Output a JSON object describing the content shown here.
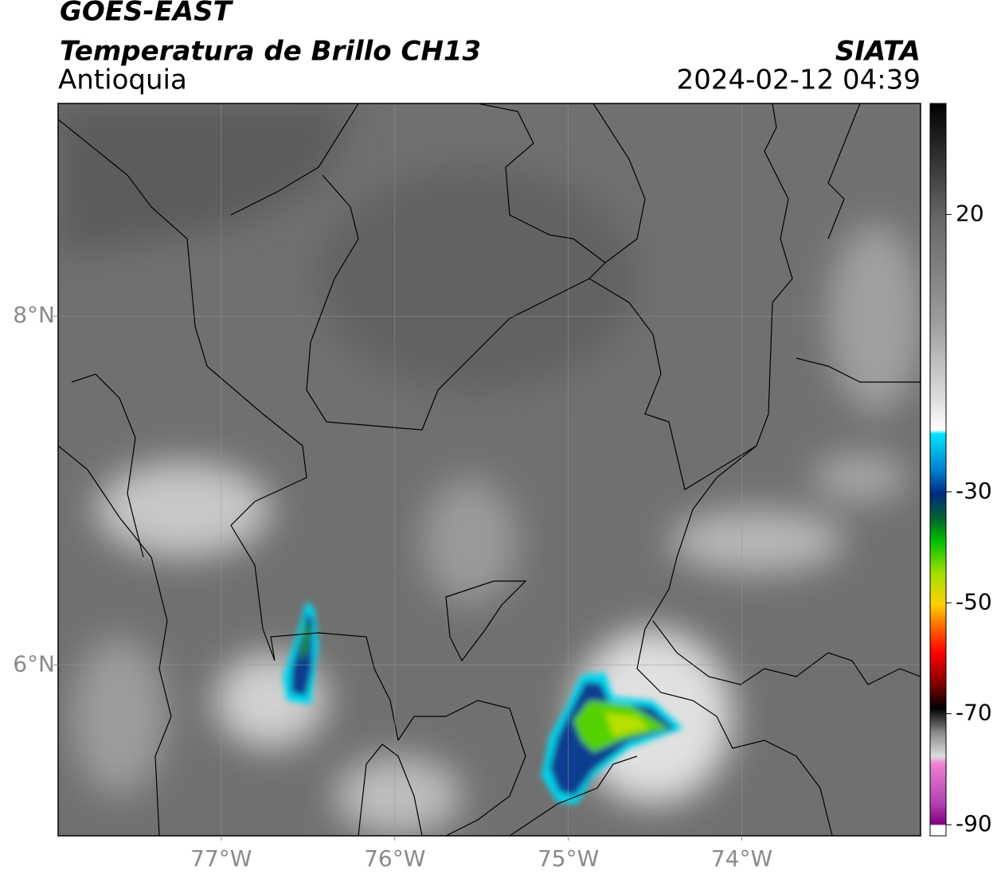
{
  "map": {
    "header": {
      "title": "GOES-EAST",
      "subtitle": "Temperatura de Brillo CH13",
      "region": "Antioquia",
      "source": "SIATA",
      "timestamp": "2024-02-12 04:39"
    },
    "xlim": [
      -77.94,
      -72.97
    ],
    "xticks": [
      {
        "value": -77,
        "label": "77°W"
      },
      {
        "value": -76,
        "label": "76°W"
      },
      {
        "value": -75,
        "label": "75°W"
      },
      {
        "value": -74,
        "label": "74°W"
      }
    ],
    "ylim": [
      5.02,
      9.22
    ],
    "yticks": [
      {
        "value": 6,
        "label": "6°N"
      },
      {
        "value": 8,
        "label": "8°N"
      }
    ],
    "grid": true,
    "colorbar": {
      "lim": [
        -92,
        40
      ],
      "ticks": [
        20,
        -30,
        -50,
        -70,
        -90
      ]
    }
  }
}
